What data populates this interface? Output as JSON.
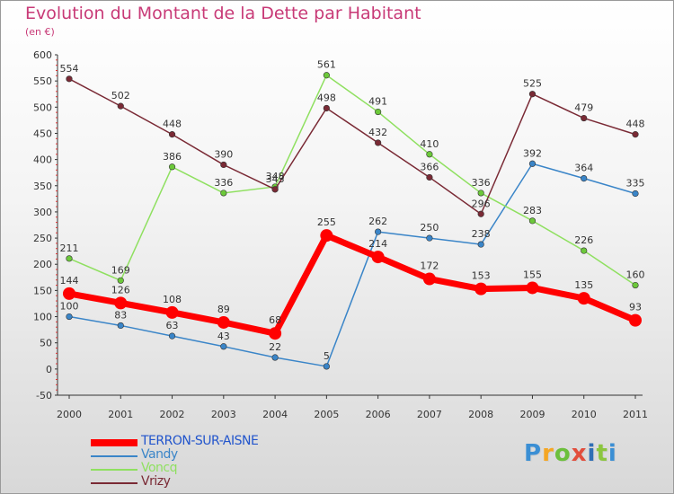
{
  "header": {
    "title": "Evolution du Montant de la Dette par Habitant",
    "unit": "(en €)"
  },
  "logo": {
    "text": "Proxiti"
  },
  "chart_data": {
    "type": "line",
    "title": "Evolution du Montant de la Dette par Habitant",
    "subtitle": "(en €)",
    "xlabel": "",
    "ylabel": "",
    "x": [
      "2000",
      "2001",
      "2002",
      "2003",
      "2004",
      "2005",
      "2006",
      "2007",
      "2008",
      "2009",
      "2010",
      "2011"
    ],
    "ylim": [
      -50,
      600
    ],
    "yticks": [
      -50,
      0,
      50,
      100,
      150,
      200,
      250,
      300,
      350,
      400,
      450,
      500,
      550,
      600
    ],
    "grid": false,
    "legend_position": "bottom-left",
    "series": [
      {
        "name": "TERRON-SUR-AISNE",
        "color": "#ff0000",
        "thick": true,
        "values": [
          144,
          126,
          108,
          89,
          68,
          255,
          214,
          172,
          153,
          155,
          135,
          93
        ]
      },
      {
        "name": "Vandy",
        "color": "#3a85c8",
        "marker": "#3a85c8",
        "values": [
          100,
          83,
          63,
          43,
          22,
          5,
          262,
          250,
          238,
          392,
          364,
          335
        ]
      },
      {
        "name": "Voncq",
        "color": "#8fe060",
        "marker": "#6cc83a",
        "values": [
          211,
          169,
          386,
          336,
          348,
          561,
          491,
          410,
          336,
          283,
          226,
          160
        ]
      },
      {
        "name": "Vrizy",
        "color": "#7a2a35",
        "marker": "#7a2a35",
        "values": [
          554,
          502,
          448,
          390,
          343,
          498,
          432,
          366,
          296,
          525,
          479,
          448
        ]
      }
    ]
  }
}
